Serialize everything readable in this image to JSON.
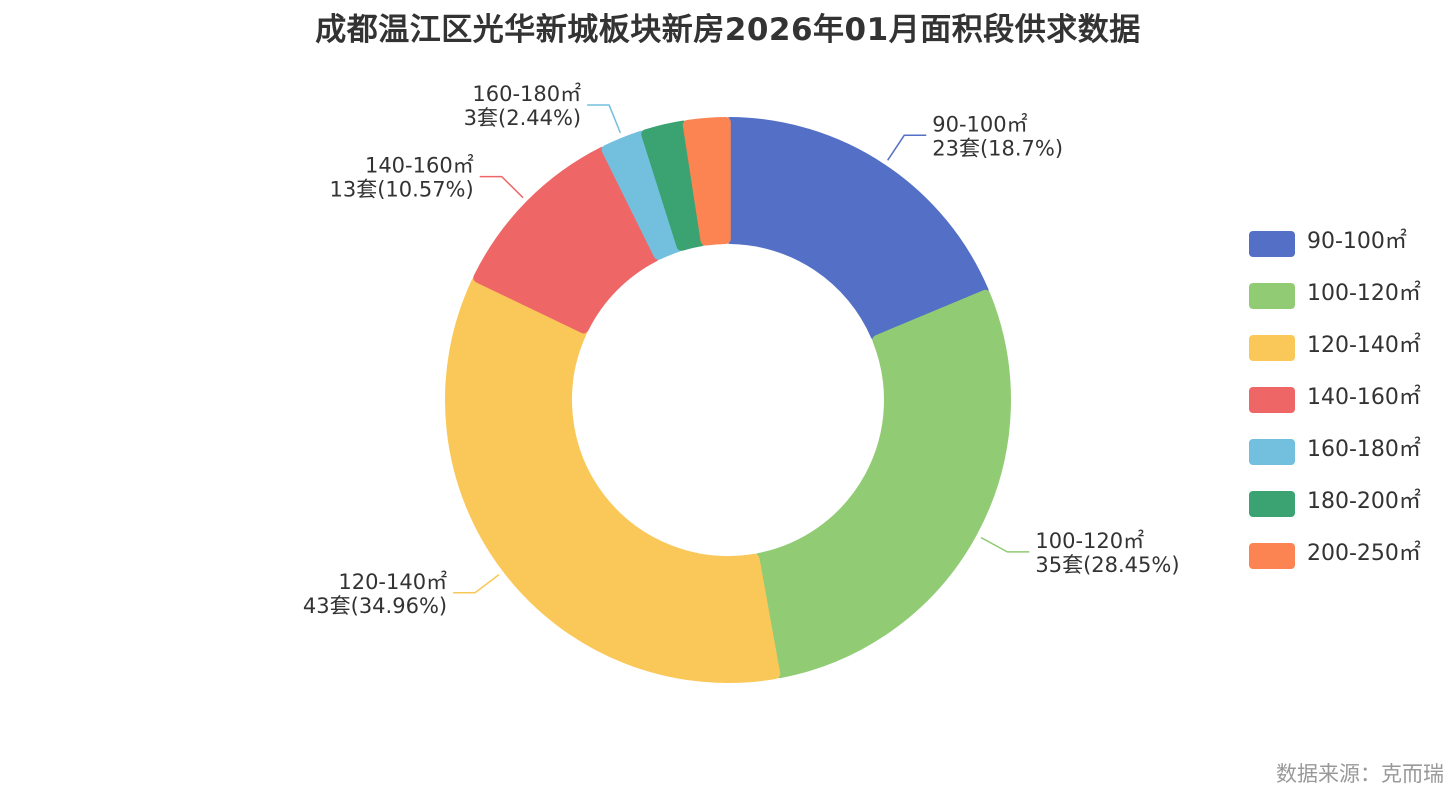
{
  "chart_data": {
    "type": "pie",
    "title": "成都温江区光华新城板块新房2026年01月面积段供求数据",
    "unit": "套",
    "slices": [
      {
        "category": "90-100㎡",
        "count": 23,
        "percent": "18.7%",
        "color": "#5470c6"
      },
      {
        "category": "100-120㎡",
        "count": 35,
        "percent": "28.45%",
        "color": "#91cc75"
      },
      {
        "category": "120-140㎡",
        "count": 43,
        "percent": "34.96%",
        "color": "#fac858"
      },
      {
        "category": "140-160㎡",
        "count": 13,
        "percent": "10.57%",
        "color": "#ee6666"
      },
      {
        "category": "160-180㎡",
        "count": 3,
        "percent": "2.44%",
        "color": "#73c0de"
      },
      {
        "category": "180-200㎡",
        "count": 3,
        "percent": "",
        "color": "#3ba272"
      },
      {
        "category": "200-250㎡",
        "count": 3,
        "percent": "",
        "color": "#fc8452"
      }
    ],
    "legend_position": "right"
  },
  "source_note": "数据来源：克而瑞"
}
